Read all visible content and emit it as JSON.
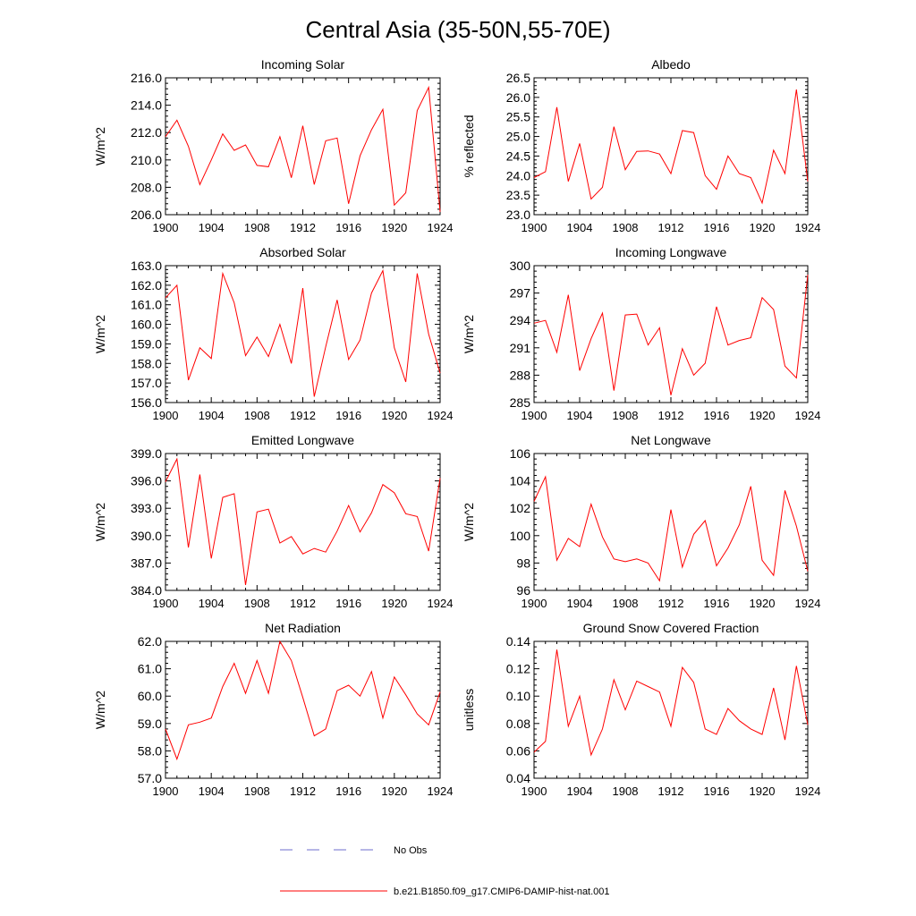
{
  "figure": {
    "title": "Central Asia (35-50N,55-70E)",
    "legend": {
      "placement": "bottom-center",
      "obs_label": "No Obs",
      "obs_color": "#6c6ccc",
      "model_label": "b.e21.B1850.f09_g17.CMIP6-DAMIP-hist-nat.001",
      "model_color": "#ff0000"
    }
  },
  "chart_data": [
    {
      "type": "line",
      "title": "Incoming Solar",
      "xlabel": "",
      "ylabel": "W/m^2",
      "xlim": [
        1900,
        1924
      ],
      "ylim": [
        206.0,
        216.0
      ],
      "xticks": [
        1900,
        1904,
        1908,
        1912,
        1916,
        1920,
        1924
      ],
      "yticks": [
        "206.0",
        "208.0",
        "210.0",
        "212.0",
        "214.0",
        "216.0"
      ],
      "grid": false,
      "series": [
        {
          "name": "b.e21.B1850.f09_g17.CMIP6-DAMIP-hist-nat.001",
          "color": "#ff0000",
          "x": [
            1900,
            1901,
            1902,
            1903,
            1904,
            1905,
            1906,
            1907,
            1908,
            1909,
            1910,
            1911,
            1912,
            1913,
            1914,
            1915,
            1916,
            1917,
            1918,
            1919,
            1920,
            1921,
            1922,
            1923,
            1924
          ],
          "values": [
            211.7,
            212.9,
            211.0,
            208.2,
            210.0,
            211.9,
            210.7,
            211.1,
            209.6,
            209.5,
            211.7,
            208.7,
            212.5,
            208.2,
            211.4,
            211.6,
            206.8,
            210.3,
            212.2,
            213.7,
            206.7,
            207.6,
            213.6,
            215.3,
            206.2
          ]
        }
      ]
    },
    {
      "type": "line",
      "title": "Albedo",
      "xlabel": "",
      "ylabel": "% reflected",
      "xlim": [
        1900,
        1924
      ],
      "ylim": [
        23.0,
        26.5
      ],
      "xticks": [
        1900,
        1904,
        1908,
        1912,
        1916,
        1920,
        1924
      ],
      "yticks": [
        "23.0",
        "23.5",
        "24.0",
        "24.5",
        "25.0",
        "25.5",
        "26.0",
        "26.5"
      ],
      "grid": false,
      "series": [
        {
          "name": "b.e21.B1850.f09_g17.CMIP6-DAMIP-hist-nat.001",
          "color": "#ff0000",
          "x": [
            1900,
            1901,
            1902,
            1903,
            1904,
            1905,
            1906,
            1907,
            1908,
            1909,
            1910,
            1911,
            1912,
            1913,
            1914,
            1915,
            1916,
            1917,
            1918,
            1919,
            1920,
            1921,
            1922,
            1923,
            1924
          ],
          "values": [
            23.95,
            24.1,
            25.75,
            23.85,
            24.82,
            23.4,
            23.7,
            25.25,
            24.15,
            24.62,
            24.63,
            24.55,
            24.05,
            25.15,
            25.1,
            24.0,
            23.65,
            24.5,
            24.05,
            23.95,
            23.3,
            24.65,
            24.05,
            26.2,
            23.85
          ]
        }
      ]
    },
    {
      "type": "line",
      "title": "Absorbed Solar",
      "xlabel": "",
      "ylabel": "W/m^2",
      "xlim": [
        1900,
        1924
      ],
      "ylim": [
        156.0,
        163.0
      ],
      "xticks": [
        1900,
        1904,
        1908,
        1912,
        1916,
        1920,
        1924
      ],
      "yticks": [
        "156.0",
        "157.0",
        "158.0",
        "159.0",
        "160.0",
        "161.0",
        "162.0",
        "163.0"
      ],
      "grid": false,
      "series": [
        {
          "name": "b.e21.B1850.f09_g17.CMIP6-DAMIP-hist-nat.001",
          "color": "#ff0000",
          "x": [
            1900,
            1901,
            1902,
            1903,
            1904,
            1905,
            1906,
            1907,
            1908,
            1909,
            1910,
            1911,
            1912,
            1913,
            1914,
            1915,
            1916,
            1917,
            1918,
            1919,
            1920,
            1921,
            1922,
            1923,
            1924
          ],
          "values": [
            161.35,
            162.0,
            157.15,
            158.8,
            158.25,
            162.6,
            161.1,
            158.4,
            159.35,
            158.35,
            160.0,
            158.0,
            161.85,
            156.3,
            158.85,
            161.25,
            158.2,
            159.2,
            161.6,
            162.75,
            158.8,
            157.05,
            162.6,
            159.5,
            157.5
          ]
        }
      ]
    },
    {
      "type": "line",
      "title": "Incoming Longwave",
      "xlabel": "",
      "ylabel": "W/m^2",
      "xlim": [
        1900,
        1924
      ],
      "ylim": [
        285,
        300
      ],
      "xticks": [
        1900,
        1904,
        1908,
        1912,
        1916,
        1920,
        1924
      ],
      "yticks": [
        "285",
        "288",
        "291",
        "294",
        "297",
        "300"
      ],
      "grid": false,
      "series": [
        {
          "name": "b.e21.B1850.f09_g17.CMIP6-DAMIP-hist-nat.001",
          "color": "#ff0000",
          "x": [
            1900,
            1901,
            1902,
            1903,
            1904,
            1905,
            1906,
            1907,
            1908,
            1909,
            1910,
            1911,
            1912,
            1913,
            1914,
            1915,
            1916,
            1917,
            1918,
            1919,
            1920,
            1921,
            1922,
            1923,
            1924
          ],
          "values": [
            293.7,
            294.0,
            290.5,
            296.8,
            288.5,
            292.0,
            294.8,
            286.3,
            294.6,
            294.7,
            291.3,
            293.2,
            285.8,
            290.9,
            288.0,
            289.3,
            295.5,
            291.3,
            291.8,
            292.1,
            296.5,
            295.2,
            289.0,
            287.7,
            299.0
          ]
        }
      ]
    },
    {
      "type": "line",
      "title": "Emitted Longwave",
      "xlabel": "",
      "ylabel": "W/m^2",
      "xlim": [
        1900,
        1924
      ],
      "ylim": [
        384.0,
        399.0
      ],
      "xticks": [
        1900,
        1904,
        1908,
        1912,
        1916,
        1920,
        1924
      ],
      "yticks": [
        "384.0",
        "387.0",
        "390.0",
        "393.0",
        "396.0",
        "399.0"
      ],
      "grid": false,
      "series": [
        {
          "name": "b.e21.B1850.f09_g17.CMIP6-DAMIP-hist-nat.001",
          "color": "#ff0000",
          "x": [
            1900,
            1901,
            1902,
            1903,
            1904,
            1905,
            1906,
            1907,
            1908,
            1909,
            1910,
            1911,
            1912,
            1913,
            1914,
            1915,
            1916,
            1917,
            1918,
            1919,
            1920,
            1921,
            1922,
            1923,
            1924
          ],
          "values": [
            395.9,
            398.4,
            388.7,
            396.7,
            387.5,
            394.2,
            394.6,
            384.6,
            392.6,
            392.9,
            389.2,
            389.9,
            388.0,
            388.6,
            388.2,
            390.5,
            393.3,
            390.4,
            392.5,
            395.6,
            394.7,
            392.4,
            392.1,
            388.3,
            396.3
          ]
        }
      ]
    },
    {
      "type": "line",
      "title": "Net Longwave",
      "xlabel": "",
      "ylabel": "W/m^2",
      "xlim": [
        1900,
        1924
      ],
      "ylim": [
        96,
        106
      ],
      "xticks": [
        1900,
        1904,
        1908,
        1912,
        1916,
        1920,
        1924
      ],
      "yticks": [
        "96",
        "98",
        "100",
        "102",
        "104",
        "106"
      ],
      "grid": false,
      "series": [
        {
          "name": "b.e21.B1850.f09_g17.CMIP6-DAMIP-hist-nat.001",
          "color": "#ff0000",
          "x": [
            1900,
            1901,
            1902,
            1903,
            1904,
            1905,
            1906,
            1907,
            1908,
            1909,
            1910,
            1911,
            1912,
            1913,
            1914,
            1915,
            1916,
            1917,
            1918,
            1919,
            1920,
            1921,
            1922,
            1923,
            1924
          ],
          "values": [
            102.5,
            104.3,
            98.2,
            99.8,
            99.2,
            102.3,
            99.9,
            98.3,
            98.1,
            98.3,
            98.0,
            96.7,
            101.9,
            97.7,
            100.1,
            101.1,
            97.8,
            99.1,
            100.8,
            103.6,
            98.2,
            97.1,
            103.3,
            100.7,
            97.4
          ]
        }
      ]
    },
    {
      "type": "line",
      "title": "Net Radiation",
      "xlabel": "",
      "ylabel": "W/m^2",
      "xlim": [
        1900,
        1924
      ],
      "ylim": [
        57.0,
        62.0
      ],
      "xticks": [
        1900,
        1904,
        1908,
        1912,
        1916,
        1920,
        1924
      ],
      "yticks": [
        "57.0",
        "58.0",
        "59.0",
        "60.0",
        "61.0",
        "62.0"
      ],
      "grid": false,
      "series": [
        {
          "name": "b.e21.B1850.f09_g17.CMIP6-DAMIP-hist-nat.001",
          "color": "#ff0000",
          "x": [
            1900,
            1901,
            1902,
            1903,
            1904,
            1905,
            1906,
            1907,
            1908,
            1909,
            1910,
            1911,
            1912,
            1913,
            1914,
            1915,
            1916,
            1917,
            1918,
            1919,
            1920,
            1921,
            1922,
            1923,
            1924
          ],
          "values": [
            58.8,
            57.7,
            58.95,
            59.05,
            59.2,
            60.35,
            61.2,
            60.1,
            61.3,
            60.1,
            62.0,
            61.3,
            59.95,
            58.55,
            58.8,
            60.2,
            60.4,
            60.0,
            60.9,
            59.2,
            60.7,
            60.05,
            59.35,
            58.95,
            60.15
          ]
        }
      ]
    },
    {
      "type": "line",
      "title": "Ground Snow Covered Fraction",
      "xlabel": "",
      "ylabel": "unitless",
      "xlim": [
        1900,
        1924
      ],
      "ylim": [
        0.04,
        0.14
      ],
      "xticks": [
        1900,
        1904,
        1908,
        1912,
        1916,
        1920,
        1924
      ],
      "yticks": [
        "0.04",
        "0.06",
        "0.08",
        "0.10",
        "0.12",
        "0.14"
      ],
      "grid": false,
      "series": [
        {
          "name": "b.e21.B1850.f09_g17.CMIP6-DAMIP-hist-nat.001",
          "color": "#ff0000",
          "x": [
            1900,
            1901,
            1902,
            1903,
            1904,
            1905,
            1906,
            1907,
            1908,
            1909,
            1910,
            1911,
            1912,
            1913,
            1914,
            1915,
            1916,
            1917,
            1918,
            1919,
            1920,
            1921,
            1922,
            1923,
            1924
          ],
          "values": [
            0.059,
            0.067,
            0.134,
            0.078,
            0.1,
            0.057,
            0.076,
            0.112,
            0.09,
            0.111,
            0.107,
            0.103,
            0.078,
            0.121,
            0.11,
            0.076,
            0.072,
            0.091,
            0.082,
            0.076,
            0.072,
            0.106,
            0.068,
            0.122,
            0.079
          ]
        }
      ]
    }
  ]
}
